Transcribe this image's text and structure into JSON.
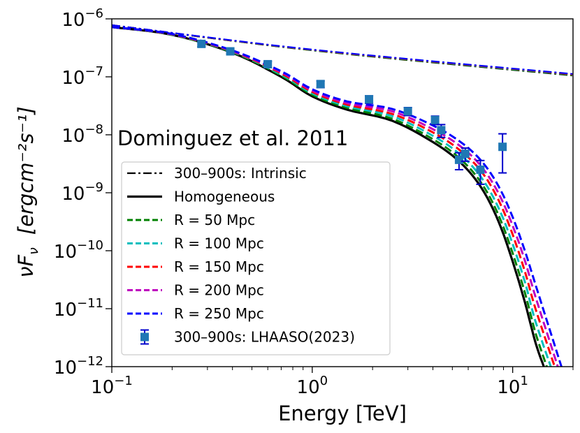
{
  "chart_data": {
    "type": "line",
    "title": "",
    "annotation": "Dominguez et al. 2011",
    "xlabel": "Energy [TeV]",
    "ylabel_prefix": "νF",
    "ylabel_sub": "ν",
    "ylabel_units": "[ergcm⁻²s⁻¹]",
    "xscale": "log",
    "yscale": "log",
    "xlim": [
      0.1,
      20
    ],
    "ylim": [
      1e-12,
      1e-06
    ],
    "x_ticks": [
      {
        "value": 0.1,
        "base": "10",
        "exp": "−1"
      },
      {
        "value": 1,
        "base": "10",
        "exp": "0"
      },
      {
        "value": 10,
        "base": "10",
        "exp": "1"
      }
    ],
    "y_ticks": [
      {
        "value": 1e-12,
        "base": "10",
        "exp": "−12"
      },
      {
        "value": 1e-11,
        "base": "10",
        "exp": "−11"
      },
      {
        "value": 1e-10,
        "base": "10",
        "exp": "−10"
      },
      {
        "value": 1e-09,
        "base": "10",
        "exp": "−9"
      },
      {
        "value": 1e-08,
        "base": "10",
        "exp": "−8"
      },
      {
        "value": 1e-07,
        "base": "10",
        "exp": "−7"
      },
      {
        "value": 1e-06,
        "base": "10",
        "exp": "−6"
      }
    ],
    "x_grid": [
      0.1,
      0.15,
      0.2,
      0.3,
      0.4,
      0.6,
      0.8,
      1,
      1.5,
      2,
      3,
      4,
      6,
      8,
      10,
      14,
      20
    ],
    "series": [
      {
        "name": "300–900s: Intrinsic",
        "style": "dashdot",
        "color": "#000000",
        "x": [
          0.1,
          1,
          20
        ],
        "y": [
          7.8e-07,
          2.85e-07,
          1.05e-07
        ]
      },
      {
        "name": "intrinsic-R50",
        "style": "dashdot",
        "color": "#008000",
        "legend": false,
        "x": [
          0.1,
          1,
          20
        ],
        "y": [
          7.8e-07,
          2.87e-07,
          1.07e-07
        ]
      },
      {
        "name": "intrinsic-R100",
        "style": "dashdot",
        "color": "#00bfbf",
        "legend": false,
        "x": [
          0.1,
          1,
          20
        ],
        "y": [
          7.8e-07,
          2.9e-07,
          1.09e-07
        ]
      },
      {
        "name": "intrinsic-R150",
        "style": "dashdot",
        "color": "#ff0000",
        "legend": false,
        "x": [
          0.1,
          1,
          20
        ],
        "y": [
          7.8e-07,
          2.92e-07,
          1.1e-07
        ]
      },
      {
        "name": "intrinsic-R250",
        "style": "dashdot",
        "color": "#0000ff",
        "legend": false,
        "x": [
          0.1,
          1,
          20
        ],
        "y": [
          7.8e-07,
          2.95e-07,
          1.12e-07
        ]
      },
      {
        "name": "Homogeneous",
        "style": "solid",
        "color": "#000000",
        "x": [
          0.1,
          0.2,
          0.4,
          0.7,
          1,
          1.5,
          2.5,
          4,
          5.5,
          7,
          8.5,
          10,
          11.5,
          13,
          14.3
        ],
        "y": [
          7.2e-07,
          5.3e-07,
          2.6e-07,
          1e-07,
          4.6e-08,
          2.7e-08,
          1.75e-08,
          7.5e-09,
          3.3e-09,
          1.2e-09,
          3.2e-10,
          6.5e-11,
          1.3e-11,
          2.6e-12,
          1e-12
        ]
      },
      {
        "name": "R = 50 Mpc",
        "style": "dashed",
        "color": "#008000",
        "x": [
          0.1,
          0.2,
          0.4,
          0.7,
          1,
          1.5,
          2.5,
          4,
          5.5,
          7,
          8.5,
          10,
          11.5,
          13,
          14.8
        ],
        "y": [
          7.2e-07,
          5.3e-07,
          2.65e-07,
          1.05e-07,
          4.9e-08,
          2.9e-08,
          1.9e-08,
          8.4e-09,
          3.8e-09,
          1.45e-09,
          4.1e-10,
          9e-11,
          1.9e-11,
          3.8e-12,
          1e-12
        ]
      },
      {
        "name": "R = 100 Mpc",
        "style": "dashed",
        "color": "#00bfbf",
        "x": [
          0.1,
          0.2,
          0.4,
          0.7,
          1,
          1.5,
          2.5,
          4,
          5.5,
          7,
          8.5,
          10,
          11.5,
          13,
          15.5
        ],
        "y": [
          7.2e-07,
          5.35e-07,
          2.7e-07,
          1.1e-07,
          5.2e-08,
          3.1e-08,
          2.1e-08,
          9.6e-09,
          4.5e-09,
          1.8e-09,
          5.5e-10,
          1.3e-10,
          2.9e-11,
          6e-12,
          1e-12
        ]
      },
      {
        "name": "R = 150 Mpc",
        "style": "dashed",
        "color": "#ff0000",
        "x": [
          0.1,
          0.2,
          0.4,
          0.7,
          1,
          1.5,
          2.5,
          4,
          5.5,
          7,
          8.5,
          10,
          11.5,
          13,
          16.2
        ],
        "y": [
          7.2e-07,
          5.4e-07,
          2.75e-07,
          1.15e-07,
          5.5e-08,
          3.3e-08,
          2.3e-08,
          1.1e-08,
          5.3e-09,
          2.3e-09,
          7.5e-10,
          1.9e-10,
          4.4e-11,
          1e-11,
          1e-12
        ]
      },
      {
        "name": "R = 200 Mpc",
        "style": "dashed",
        "color": "#bf00bf",
        "x": [
          0.1,
          0.2,
          0.4,
          0.7,
          1,
          1.5,
          2.5,
          4,
          5.5,
          7,
          8.5,
          10,
          11.5,
          13,
          16.8
        ],
        "y": [
          7.2e-07,
          5.45e-07,
          2.8e-07,
          1.2e-07,
          5.8e-08,
          3.5e-08,
          2.55e-08,
          1.25e-08,
          6.3e-09,
          2.8e-09,
          9.8e-10,
          2.7e-10,
          6.8e-11,
          1.6e-11,
          1e-12
        ]
      },
      {
        "name": "R = 250 Mpc",
        "style": "dashed",
        "color": "#0000ff",
        "x": [
          0.1,
          0.2,
          0.4,
          0.7,
          1,
          1.5,
          2.5,
          4,
          5.5,
          7,
          8.5,
          10,
          11.5,
          13,
          17.5
        ],
        "y": [
          7.2e-07,
          5.5e-07,
          2.85e-07,
          1.25e-07,
          6.1e-08,
          3.75e-08,
          2.8e-08,
          1.45e-08,
          7.5e-09,
          3.5e-09,
          1.3e-09,
          3.8e-10,
          1e-10,
          2.6e-11,
          1e-12
        ]
      }
    ],
    "points": {
      "name": "300–900s: LHAASO(2023)",
      "color": "#1f77b4",
      "ecolor": "#0000cc",
      "x": [
        0.28,
        0.39,
        0.6,
        1.1,
        1.92,
        3.0,
        4.1,
        4.4,
        5.4,
        5.8,
        6.9,
        8.9
      ],
      "y": [
        3.7e-07,
        2.75e-07,
        1.65e-07,
        7.5e-08,
        4.1e-08,
        2.55e-08,
        1.8e-08,
        1.2e-08,
        3.7e-09,
        4.7e-09,
        2.5e-09,
        6.2e-09
      ],
      "yerr_low": [
        4e-08,
        3e-08,
        2e-08,
        1e-08,
        6e-09,
        4e-09,
        3e-09,
        3e-09,
        1.2e-09,
        1.2e-09,
        1.1e-09,
        4e-09
      ],
      "yerr_high": [
        4e-08,
        3e-08,
        2e-08,
        1e-08,
        6e-09,
        4e-09,
        3e-09,
        3e-09,
        1.2e-09,
        1.2e-09,
        1.1e-09,
        4.2e-09
      ]
    },
    "legend": {
      "placement": "lower-left",
      "entries": [
        "300–900s: Intrinsic",
        "Homogeneous",
        "R = 50 Mpc",
        "R = 100 Mpc",
        "R = 150 Mpc",
        "R = 200 Mpc",
        "R = 250 Mpc",
        "300–900s: LHAASO(2023)"
      ]
    }
  }
}
